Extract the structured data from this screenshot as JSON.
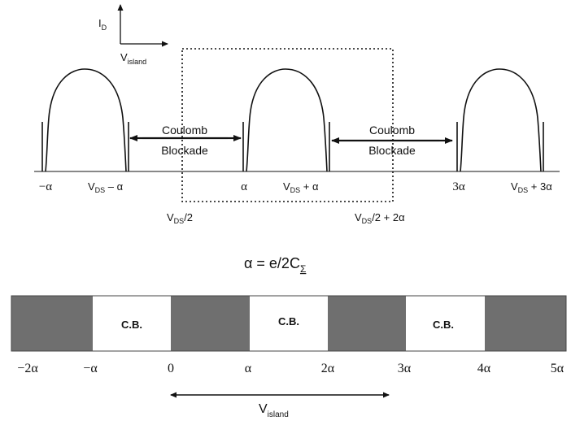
{
  "axes_legend": {
    "y": "I",
    "y_sub": "D",
    "x": "V",
    "x_sub": "island"
  },
  "blockade_labels": [
    {
      "line1": "Coulomb",
      "line2": "Blockade"
    },
    {
      "line1": "Coulomb",
      "line2": "Blockade"
    }
  ],
  "top_axis_labels": {
    "neg_alpha": "−α",
    "vds_minus_alpha": {
      "main": "V",
      "sub": "DS",
      "rest": " – α"
    },
    "alpha": "α",
    "vds_plus_alpha": {
      "main": "V",
      "sub": "DS",
      "rest": " + α"
    },
    "three_alpha": "3α",
    "vds_plus_3alpha": {
      "main": "V",
      "sub": "DS",
      "rest": " + 3α"
    }
  },
  "box_labels": {
    "left": {
      "main": "V",
      "sub": "DS",
      "rest": "/2"
    },
    "right": {
      "main": "V",
      "sub": "DS",
      "rest": "/2 + 2α"
    }
  },
  "equation": {
    "lhs": "α = e/2C",
    "sub": "Σ"
  },
  "bar": {
    "segments": [
      "",
      "C.B.",
      "",
      "C.B.",
      "",
      "C.B.",
      ""
    ],
    "shaded_color": "#6f6f6f",
    "ticks": [
      "−2α",
      "−α",
      "0",
      "α",
      "2α",
      "3α",
      "4α",
      "5α"
    ]
  },
  "bottom_arrow_label": {
    "main": "V",
    "sub": "island"
  }
}
